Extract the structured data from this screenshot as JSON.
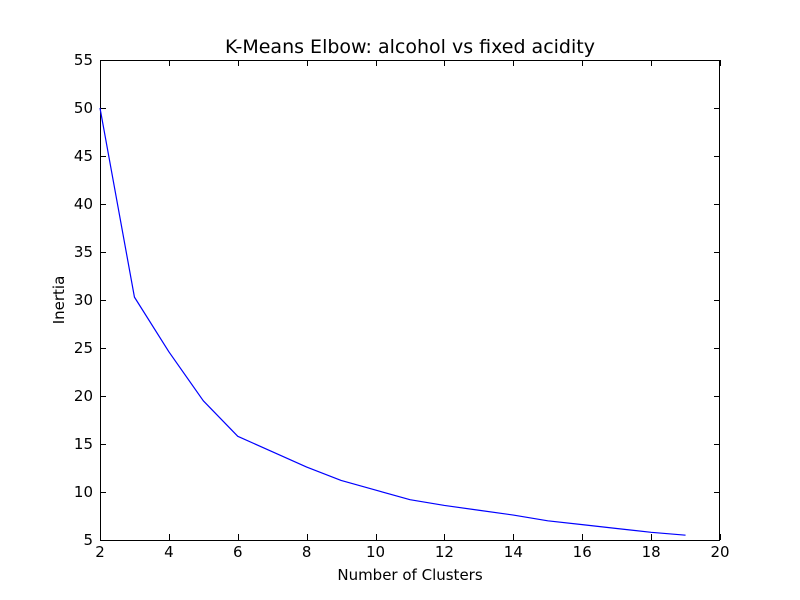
{
  "chart_data": {
    "type": "line",
    "title": "K-Means Elbow: alcohol vs fixed acidity",
    "xlabel": "Number of Clusters",
    "ylabel": "Inertia",
    "xlim": [
      2,
      20
    ],
    "ylim": [
      5,
      55
    ],
    "x_ticks": [
      2,
      4,
      6,
      8,
      10,
      12,
      14,
      16,
      18,
      20
    ],
    "y_ticks": [
      5,
      10,
      15,
      20,
      25,
      30,
      35,
      40,
      45,
      50,
      55
    ],
    "grid": false,
    "series": [
      {
        "color": "#0000ff",
        "x": [
          2,
          3,
          4,
          5,
          6,
          7,
          8,
          9,
          10,
          11,
          12,
          13,
          14,
          15,
          16,
          17,
          18,
          19
        ],
        "y": [
          50.0,
          30.3,
          24.6,
          19.5,
          15.8,
          14.2,
          12.6,
          11.2,
          10.2,
          9.2,
          8.6,
          8.1,
          7.6,
          7.0,
          6.6,
          6.2,
          5.8,
          5.5
        ]
      }
    ]
  }
}
